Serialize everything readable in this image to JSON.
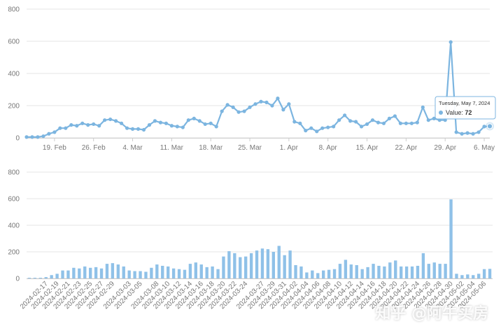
{
  "chart_data": [
    {
      "type": "line",
      "ylim": [
        0,
        800
      ],
      "yticks": [
        "0",
        "200",
        "400",
        "600",
        "800"
      ],
      "xtick_labels": [
        "19. Feb",
        "26. Feb",
        "4. Mar",
        "11. Mar",
        "18. Mar",
        "25. Mar",
        "1. Apr",
        "8. Apr",
        "15. Apr",
        "22. Apr",
        "29. Apr",
        "6. May"
      ],
      "x_start": "2024-02-14",
      "x_end": "2024-05-07",
      "series": [
        {
          "values": [
            5,
            5,
            5,
            10,
            25,
            35,
            60,
            60,
            80,
            75,
            90,
            80,
            85,
            75,
            110,
            115,
            105,
            90,
            60,
            55,
            55,
            50,
            80,
            105,
            95,
            90,
            75,
            70,
            65,
            110,
            120,
            105,
            85,
            90,
            70,
            165,
            205,
            190,
            160,
            165,
            190,
            210,
            225,
            220,
            200,
            245,
            175,
            210,
            100,
            90,
            45,
            60,
            40,
            60,
            65,
            70,
            110,
            140,
            105,
            100,
            70,
            85,
            110,
            95,
            90,
            120,
            135,
            90,
            90,
            90,
            95,
            190,
            110,
            120,
            110,
            110,
            595,
            35,
            25,
            30,
            25,
            35,
            70,
            72
          ]
        }
      ],
      "tooltip": {
        "date": "Tuesday, May 7, 2024",
        "label": "Value:",
        "value": "72"
      },
      "grid": true
    },
    {
      "type": "bar",
      "ylim": [
        0,
        800
      ],
      "yticks": [
        "0",
        "200",
        "400",
        "600",
        "800"
      ],
      "categories": [
        "2024-02-14",
        "2024-02-15",
        "2024-02-16",
        "2024-02-17",
        "2024-02-18",
        "2024-02-19",
        "2024-02-20",
        "2024-02-21",
        "2024-02-22",
        "2024-02-23",
        "2024-02-24",
        "2024-02-25",
        "2024-02-26",
        "2024-02-27",
        "2024-02-28",
        "2024-02-29",
        "2024-03-01",
        "2024-03-02",
        "2024-03-03",
        "2024-03-04",
        "2024-03-05",
        "2024-03-06",
        "2024-03-07",
        "2024-03-08",
        "2024-03-09",
        "2024-03-10",
        "2024-03-11",
        "2024-03-12",
        "2024-03-13",
        "2024-03-14",
        "2024-03-15",
        "2024-03-16",
        "2024-03-17",
        "2024-03-18",
        "2024-03-19",
        "2024-03-20",
        "2024-03-21",
        "2024-03-22",
        "2024-03-23",
        "2024-03-24",
        "2024-03-25",
        "2024-03-26",
        "2024-03-27",
        "2024-03-28",
        "2024-03-29",
        "2024-03-30",
        "2024-03-31",
        "2024-04-01",
        "2024-04-02",
        "2024-04-03",
        "2024-04-04",
        "2024-04-05",
        "2024-04-06",
        "2024-04-07",
        "2024-04-08",
        "2024-04-09",
        "2024-04-10",
        "2024-04-11",
        "2024-04-12",
        "2024-04-13",
        "2024-04-14",
        "2024-04-15",
        "2024-04-16",
        "2024-04-17",
        "2024-04-18",
        "2024-04-19",
        "2024-04-20",
        "2024-04-21",
        "2024-04-22",
        "2024-04-23",
        "2024-04-24",
        "2024-04-25",
        "2024-04-26",
        "2024-04-27",
        "2024-04-28",
        "2024-04-29",
        "2024-04-30",
        "2024-05-01",
        "2024-05-02",
        "2024-05-03",
        "2024-05-04",
        "2024-05-05",
        "2024-05-06",
        "2024-05-07"
      ],
      "xtick_labels": [
        "2024-02-17",
        "2024-02-19",
        "2024-02-21",
        "2024-02-23",
        "2024-02-25",
        "2024-02-27",
        "2024-02-29",
        "2024-03-03",
        "2024-03-05",
        "2024-03-08",
        "2024-03-10",
        "2024-03-12",
        "2024-03-14",
        "2024-03-16",
        "2024-03-18",
        "2024-03-20",
        "2024-03-22",
        "2024-03-24",
        "2024-03-27",
        "2024-03-29",
        "2024-03-31",
        "2024-04-02",
        "2024-04-04",
        "2024-04-06",
        "2024-04-08",
        "2024-04-10",
        "2024-04-12",
        "2024-04-14",
        "2024-04-16",
        "2024-04-18",
        "2024-04-20",
        "2024-04-22",
        "2024-04-24",
        "2024-04-26",
        "2024-04-28",
        "2024-04-30",
        "2024-05-02",
        "2024-05-04",
        "2024-05-06"
      ],
      "series": [
        {
          "values": [
            5,
            5,
            5,
            10,
            25,
            35,
            60,
            60,
            80,
            75,
            90,
            80,
            85,
            75,
            110,
            115,
            105,
            90,
            60,
            55,
            55,
            50,
            80,
            105,
            95,
            90,
            75,
            70,
            65,
            110,
            120,
            105,
            85,
            90,
            70,
            165,
            205,
            190,
            160,
            165,
            190,
            210,
            225,
            220,
            200,
            245,
            175,
            210,
            100,
            90,
            45,
            60,
            40,
            60,
            65,
            70,
            110,
            140,
            105,
            100,
            70,
            85,
            110,
            95,
            90,
            120,
            135,
            90,
            90,
            90,
            95,
            190,
            110,
            120,
            110,
            110,
            595,
            35,
            25,
            30,
            25,
            35,
            70,
            72
          ]
        }
      ],
      "grid": true
    }
  ],
  "watermark": "知乎 @阿牛买房",
  "colors": {
    "line": "#7cb5e0",
    "bar": "#8fc1e8",
    "grid": "#e6e6e6",
    "axis_text": "#777777"
  }
}
